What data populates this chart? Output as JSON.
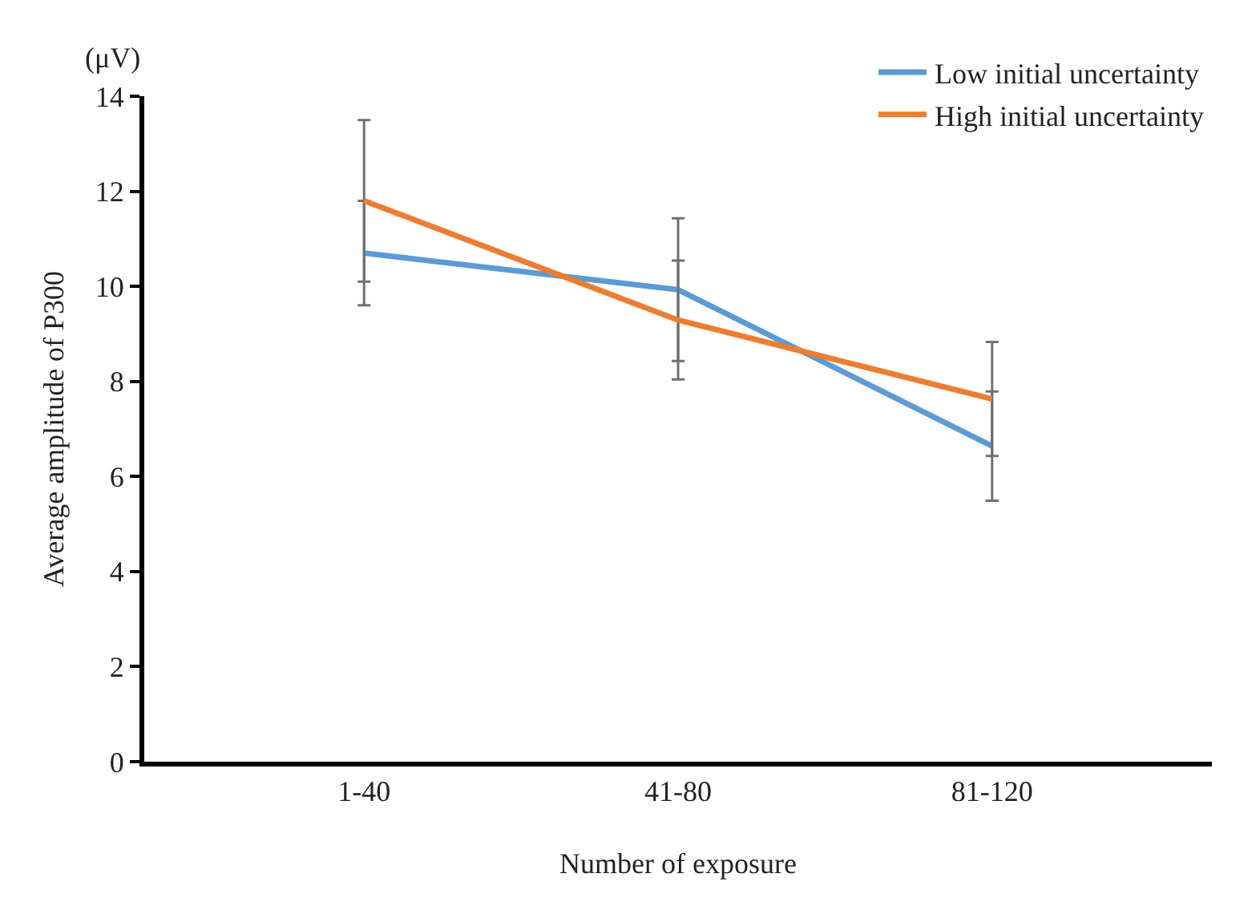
{
  "chart_data": {
    "type": "line",
    "xlabel": "Number of exposure",
    "ylabel": "Average amplitude of P300",
    "annotations": [
      "(μV)"
    ],
    "categories": [
      "1-40",
      "41-80",
      "81-120"
    ],
    "series": [
      {
        "name": "Low initial uncertainty",
        "color": "#5b9bd5",
        "values": [
          10.7,
          9.93,
          6.64
        ],
        "errors": [
          1.1,
          1.5,
          1.15
        ]
      },
      {
        "name": "High initial uncertainty",
        "color": "#ed7d31",
        "values": [
          11.8,
          9.29,
          7.63
        ],
        "errors": [
          1.7,
          1.25,
          1.2
        ]
      }
    ],
    "ylim": [
      0,
      14
    ],
    "yticks": [
      0,
      2,
      4,
      6,
      8,
      10,
      12,
      14
    ],
    "grid": false,
    "legend": "top right",
    "marker": "none",
    "line_style": "solid"
  }
}
